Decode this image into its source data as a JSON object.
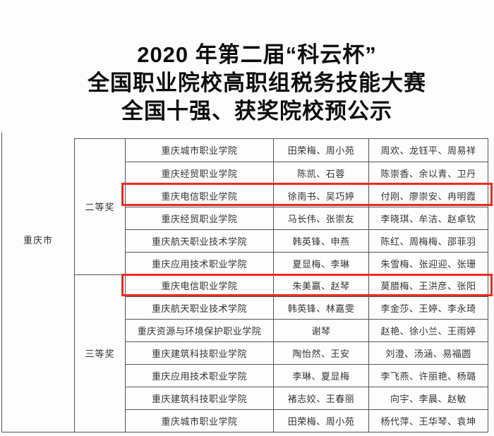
{
  "title": {
    "line1": "2020 年第二届“科云杯”",
    "line2": "全国职业院校高职组税务技能大赛",
    "line3": "全国十强、获奖院校预公示"
  },
  "table": {
    "region": "重庆市",
    "highlight_color": "#ee2b20",
    "sections": [
      {
        "prize": "二等奖",
        "rows": [
          {
            "school": "重庆城市职业学院",
            "teachers": "田荣梅、周小苑",
            "students": "周欢、龙钰平、周易祥",
            "highlighted": false
          },
          {
            "school": "重庆经贸职业学院",
            "teachers": "陈凯、石蓉",
            "students": "陈崇香、余以青、卫丹",
            "highlighted": false
          },
          {
            "school": "重庆电信职业学院",
            "teachers": "徐南书、吴巧婷",
            "students": "付刚、廖崇安、冉明霞",
            "highlighted": true
          },
          {
            "school": "重庆经贸职业学院",
            "teachers": "马长伟、张崇友",
            "students": "李晓琪、牟洁、赵卓钦",
            "highlighted": false
          },
          {
            "school": "重庆航天职业技术学院",
            "teachers": "韩英锋、申燕",
            "students": "陈红、周梅梅、邵菲羽",
            "highlighted": false
          },
          {
            "school": "重庆应用技术职业学院",
            "teachers": "夏显梅、李琳",
            "students": "朱雪梅、张迎迎、张珊",
            "highlighted": false
          }
        ]
      },
      {
        "prize": "三等奖",
        "rows": [
          {
            "school": "重庆电信职业学院",
            "teachers": "朱美赢、赵琴",
            "students": "莫腊梅、王洪彦、张阳",
            "highlighted": true
          },
          {
            "school": "重庆航天职业技术学院",
            "teachers": "韩英锋、林嘉雯",
            "students": "李金莎、王婷、李永琦",
            "highlighted": false
          },
          {
            "school": "重庆资源与环境保护职业学院",
            "teachers": "谢琴",
            "students": "赵艳、徐小兰、王雨婷",
            "highlighted": false
          },
          {
            "school": "重庆建筑科技职业学院",
            "teachers": "陶怡然、王安",
            "students": "刘澄、汤涵、易福圆",
            "highlighted": false
          },
          {
            "school": "重庆应用技术职业学院",
            "teachers": "李琳、夏显梅",
            "students": "李飞燕、许丽艳、杨璐",
            "highlighted": false
          },
          {
            "school": "重庆建筑科技职业学院",
            "teachers": "褚志姣、王春丽",
            "students": "向宇、李晨、赵敏",
            "highlighted": false
          },
          {
            "school": "重庆城市职业学院",
            "teachers": "田荣梅、周小苑",
            "students": "杨代萍、王华琴、袁坤",
            "highlighted": false
          }
        ]
      }
    ]
  }
}
